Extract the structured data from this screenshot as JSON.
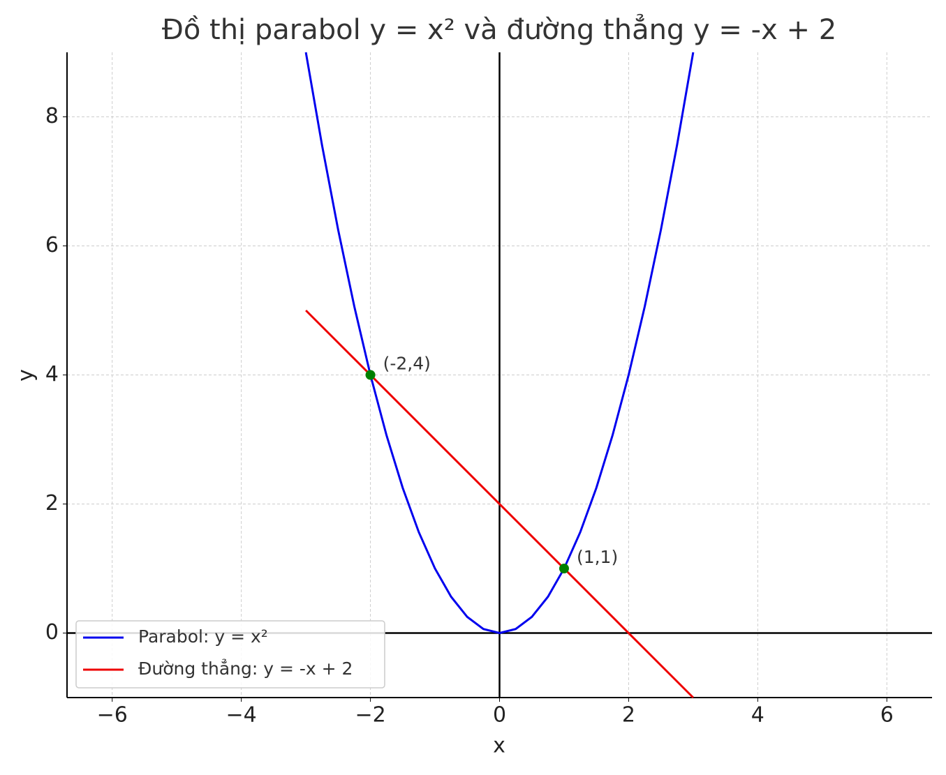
{
  "chart_data": {
    "type": "line",
    "title": "Đồ thị parabol y = x² và đường thẳng y = -x + 2",
    "x_label": "x",
    "y_label": "y",
    "series": [
      {
        "name": "Parabol: y = x²",
        "color": "#0000ee",
        "x": [
          -3,
          -2.75,
          -2.5,
          -2.25,
          -2,
          -1.75,
          -1.5,
          -1.25,
          -1,
          -0.75,
          -0.5,
          -0.25,
          0,
          0.25,
          0.5,
          0.75,
          1,
          1.25,
          1.5,
          1.75,
          2,
          2.25,
          2.5,
          2.75,
          3
        ],
        "values": [
          9,
          7.5625,
          6.25,
          5.0625,
          4,
          3.0625,
          2.25,
          1.5625,
          1,
          0.5625,
          0.25,
          0.0625,
          0,
          0.0625,
          0.25,
          0.5625,
          1,
          1.5625,
          2.25,
          3.0625,
          4,
          5.0625,
          6.25,
          7.5625,
          9
        ]
      },
      {
        "name": "Đường thẳng: y = -x + 2",
        "color": "#ee0000",
        "x": [
          -3,
          3
        ],
        "values": [
          5,
          -1
        ]
      }
    ],
    "points": {
      "color": "#008000",
      "x": [
        -2,
        1
      ],
      "values": [
        4,
        1
      ],
      "labels": [
        "(-2,4)",
        "(1,1)"
      ]
    },
    "xlim": [
      -6.7,
      6.7
    ],
    "ylim": [
      -1,
      9
    ],
    "xticks": [
      {
        "value": -6,
        "label": "−6"
      },
      {
        "value": -4,
        "label": "−4"
      },
      {
        "value": -2,
        "label": "−2"
      },
      0,
      2,
      4,
      6
    ],
    "yticks": [
      0,
      2,
      4,
      6,
      8
    ],
    "grid": true,
    "legend": "lower left"
  }
}
